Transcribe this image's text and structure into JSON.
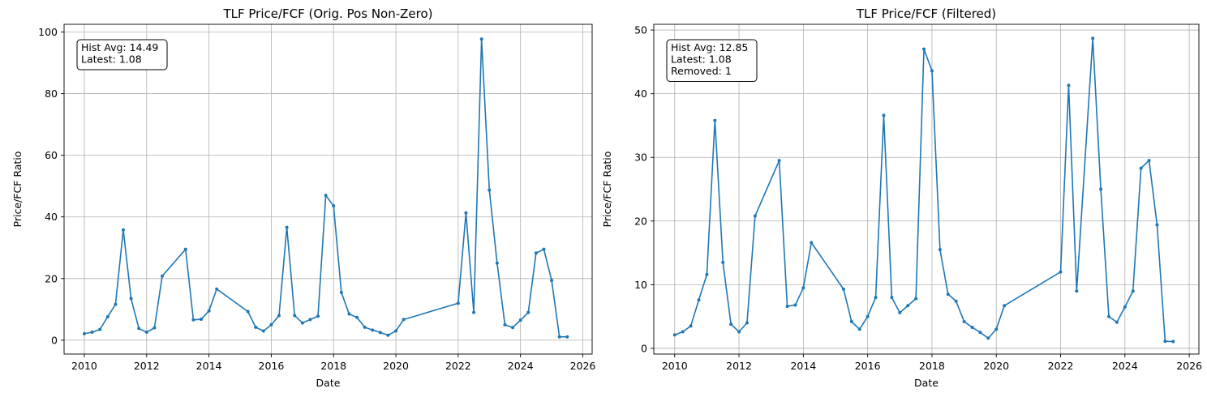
{
  "chart_data": [
    {
      "type": "line",
      "title": "TLF Price/FCF (Orig. Pos Non-Zero)",
      "xlabel": "Date",
      "ylabel": "Price/FCF Ratio",
      "xlim": [
        2009.35,
        2026.3
      ],
      "ylim": [
        -4.5,
        102.5
      ],
      "xticks": [
        2010,
        2012,
        2014,
        2016,
        2018,
        2020,
        2022,
        2024,
        2026
      ],
      "yticks": [
        0,
        20,
        40,
        60,
        80,
        100
      ],
      "grid": true,
      "annotation": [
        "Hist Avg: 14.49",
        "Latest: 1.08"
      ],
      "color": "#1f77b4",
      "series": [
        {
          "x": [
            2010.0,
            2010.25,
            2010.5,
            2010.75,
            2011.0,
            2011.25,
            2011.5,
            2011.75,
            2012.0,
            2012.25,
            2012.5,
            2013.25,
            2013.5,
            2013.75,
            2014.0,
            2014.25,
            2015.25,
            2015.5,
            2015.75,
            2016.0,
            2016.25,
            2016.5,
            2016.75,
            2017.0,
            2017.25,
            2017.5,
            2017.75,
            2018.0,
            2018.25,
            2018.5,
            2018.75,
            2019.0,
            2019.25,
            2019.5,
            2019.75,
            2020.0,
            2020.25,
            2022.0,
            2022.25,
            2022.5,
            2022.75,
            2023.0,
            2023.25,
            2023.5,
            2023.75,
            2024.0,
            2024.25,
            2024.5,
            2024.75,
            2025.0,
            2025.25,
            2025.5
          ],
          "y": [
            2.1,
            2.6,
            3.5,
            7.6,
            11.6,
            35.8,
            13.5,
            3.8,
            2.6,
            4.0,
            20.8,
            29.5,
            6.6,
            6.8,
            9.5,
            16.6,
            9.3,
            4.2,
            3.0,
            5.0,
            8.0,
            36.6,
            8.0,
            5.6,
            6.7,
            7.8,
            47.0,
            43.6,
            15.5,
            8.5,
            7.4,
            4.2,
            3.3,
            2.5,
            1.6,
            3.0,
            6.7,
            12.0,
            41.3,
            9.0,
            97.7,
            48.7,
            25.0,
            5.0,
            4.1,
            6.5,
            9.0,
            28.3,
            29.5,
            19.4,
            1.1,
            1.08
          ]
        }
      ]
    },
    {
      "type": "line",
      "title": "TLF Price/FCF (Filtered)",
      "xlabel": "Date",
      "ylabel": "Price/FCF Ratio",
      "xlim": [
        2009.35,
        2026.3
      ],
      "ylim": [
        -0.9,
        50.9
      ],
      "xticks": [
        2010,
        2012,
        2014,
        2016,
        2018,
        2020,
        2022,
        2024,
        2026
      ],
      "yticks": [
        0,
        10,
        20,
        30,
        40,
        50
      ],
      "grid": true,
      "annotation": [
        "Hist Avg: 12.85",
        "Latest: 1.08",
        "Removed: 1"
      ],
      "color": "#1f77b4",
      "series": [
        {
          "x": [
            2010.0,
            2010.25,
            2010.5,
            2010.75,
            2011.0,
            2011.25,
            2011.5,
            2011.75,
            2012.0,
            2012.25,
            2012.5,
            2013.25,
            2013.5,
            2013.75,
            2014.0,
            2014.25,
            2015.25,
            2015.5,
            2015.75,
            2016.0,
            2016.25,
            2016.5,
            2016.75,
            2017.0,
            2017.25,
            2017.5,
            2017.75,
            2018.0,
            2018.25,
            2018.5,
            2018.75,
            2019.0,
            2019.25,
            2019.5,
            2019.75,
            2020.0,
            2020.25,
            2022.0,
            2022.25,
            2022.5,
            2023.0,
            2023.25,
            2023.5,
            2023.75,
            2024.0,
            2024.25,
            2024.5,
            2024.75,
            2025.0,
            2025.25,
            2025.5
          ],
          "y": [
            2.1,
            2.6,
            3.5,
            7.6,
            11.6,
            35.8,
            13.5,
            3.8,
            2.6,
            4.0,
            20.8,
            29.5,
            6.6,
            6.8,
            9.5,
            16.6,
            9.3,
            4.2,
            3.0,
            5.0,
            8.0,
            36.6,
            8.0,
            5.6,
            6.7,
            7.8,
            47.0,
            43.6,
            15.5,
            8.5,
            7.4,
            4.2,
            3.3,
            2.5,
            1.6,
            3.0,
            6.7,
            12.0,
            41.3,
            9.0,
            48.7,
            25.0,
            5.0,
            4.1,
            6.5,
            9.0,
            28.3,
            29.5,
            19.4,
            1.1,
            1.08
          ]
        }
      ]
    }
  ]
}
